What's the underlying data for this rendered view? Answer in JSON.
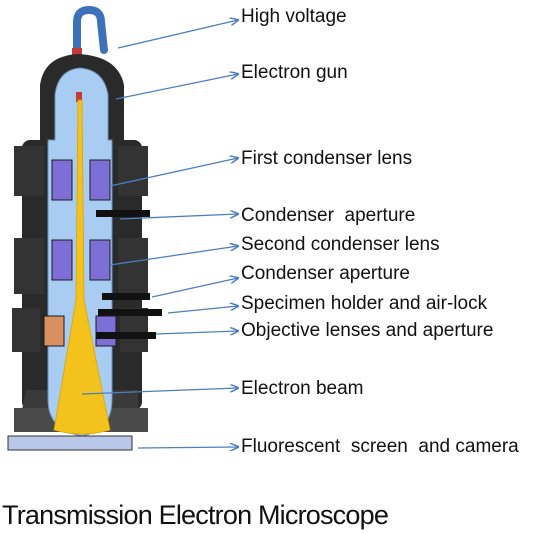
{
  "title": "Transmission Electron Microscope",
  "labels": [
    "High voltage",
    "Electron gun",
    "First condenser lens",
    "Condenser  aperture",
    "Second condenser lens",
    "Condenser aperture",
    "Specimen holder and air-lock",
    "Objective lenses and aperture",
    "Electron beam",
    "Fluorescent  screen  and camera"
  ],
  "colors": {
    "arrow": "#4a7fc1",
    "column_fill": "#a9cdf2",
    "column_body": "#2a2a2a",
    "lens": "#7d6fd6",
    "beam": "#f3c21c",
    "cable": "#3d72b8",
    "screen": "#b9c7ea"
  }
}
